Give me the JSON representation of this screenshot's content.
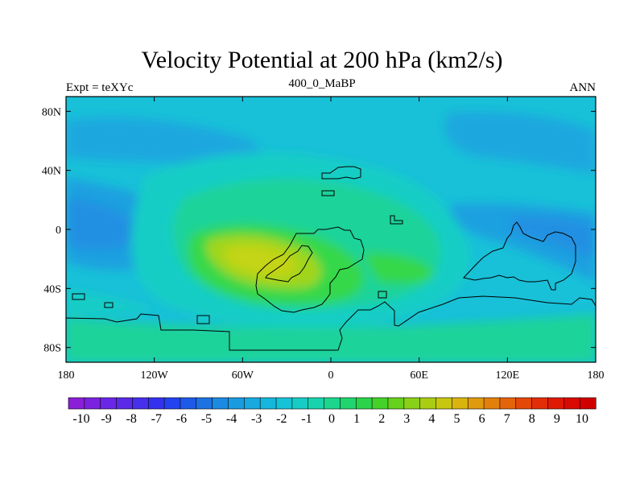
{
  "chart_data": {
    "type": "heatmap",
    "title": "Velocity Potential at 200 hPa (km2/s)",
    "subtitle_left": "Expt = teXYc",
    "subtitle_center": "400_0_MaBP",
    "subtitle_right": "ANN",
    "x_ticks": [
      "180",
      "120W",
      "60W",
      "0",
      "60E",
      "120E",
      "180"
    ],
    "y_ticks": [
      "80N",
      "40N",
      "0",
      "40S",
      "80S"
    ],
    "xlim": [
      -180,
      180
    ],
    "ylim": [
      -90,
      90
    ],
    "colorbar": {
      "labels": [
        "-10",
        "-9",
        "-8",
        "-7",
        "-6",
        "-5",
        "-4",
        "-3",
        "-2",
        "-1",
        "0",
        "1",
        "2",
        "3",
        "4",
        "5",
        "6",
        "7",
        "8",
        "9",
        "10"
      ],
      "range": [
        -10,
        10
      ],
      "colors": [
        "#8a1fd8",
        "#7a22e0",
        "#6a26e6",
        "#5a2ae8",
        "#472feb",
        "#3432ee",
        "#2343f0",
        "#1e5ae8",
        "#1c72e2",
        "#1b8ae0",
        "#1a9be0",
        "#18a9df",
        "#16b6dc",
        "#16c3d6",
        "#17ccc4",
        "#19d3ac",
        "#1cd68e",
        "#20d56e",
        "#2bd34a",
        "#44d22a",
        "#66d11c",
        "#89d018",
        "#aacd14",
        "#c7c711",
        "#d9b40f",
        "#e09a0d",
        "#e3800b",
        "#e4640a",
        "#e44808",
        "#e22e07",
        "#de1a05",
        "#d80a03",
        "#d00000"
      ]
    },
    "field_levels": [
      {
        "level": 0.0,
        "color": "#1ab8dd"
      },
      {
        "level": -1.0,
        "color": "#1da9e0"
      },
      {
        "level": -2.0,
        "color": "#2090e2"
      },
      {
        "level": 1.0,
        "color": "#17ccc8"
      },
      {
        "level": 2.0,
        "color": "#19d29a"
      },
      {
        "level": 3.0,
        "color": "#35d84a"
      },
      {
        "level": 4.0,
        "color": "#9ed51a"
      },
      {
        "level": 5.0,
        "color": "#c3d414"
      }
    ]
  }
}
